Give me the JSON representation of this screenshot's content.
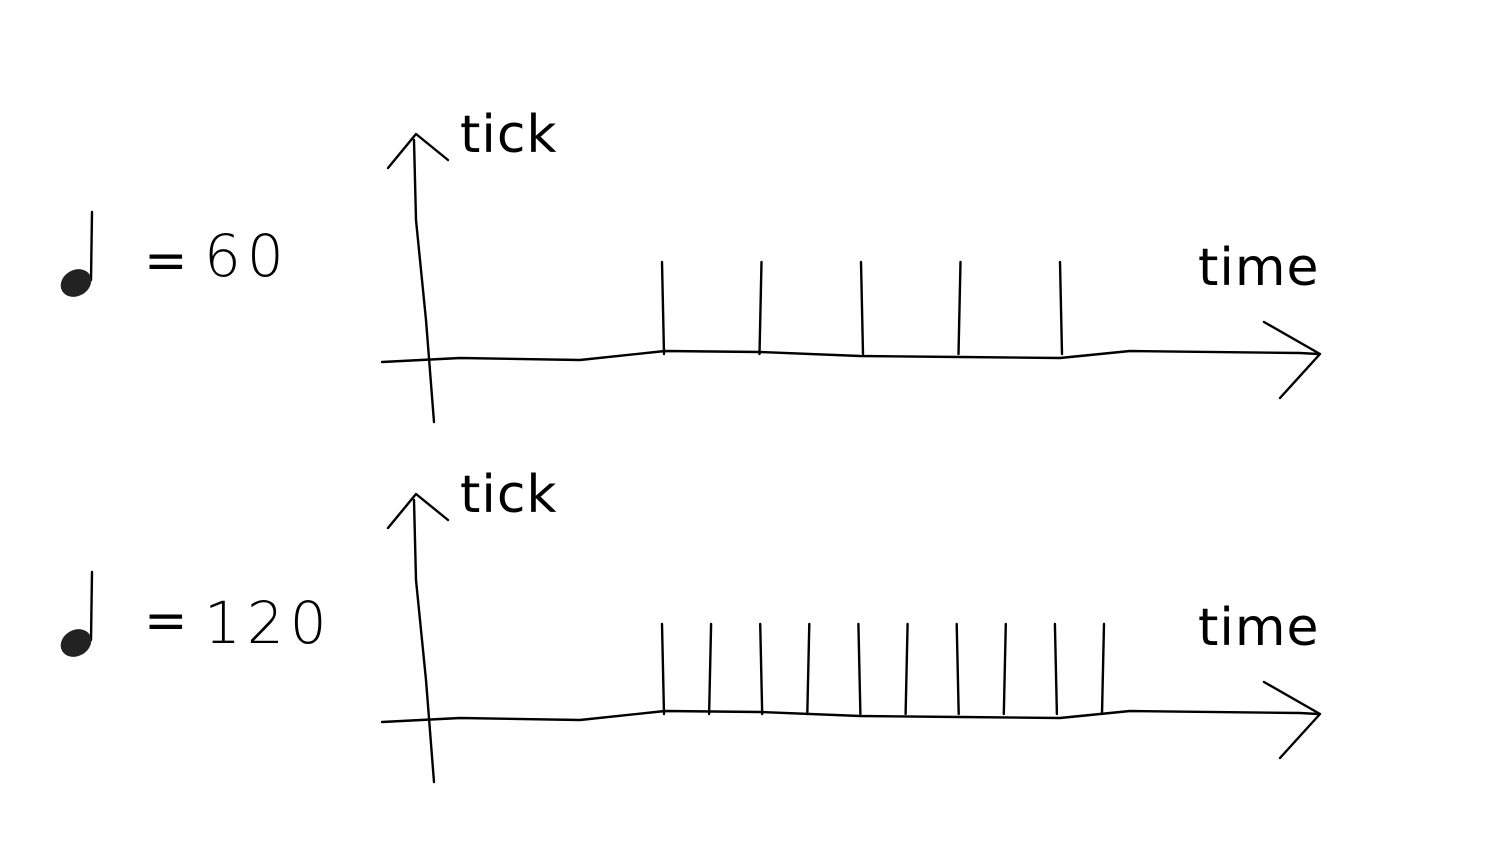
{
  "panels": [
    {
      "id": "tempo-60",
      "tempo_symbol": "quarter-note-icon",
      "equals": "=",
      "bpm": "60",
      "y_axis_label": "tick",
      "x_axis_label": "time",
      "tick_count": 5
    },
    {
      "id": "tempo-120",
      "tempo_symbol": "quarter-note-icon",
      "equals": "=",
      "bpm": "120",
      "y_axis_label": "tick",
      "x_axis_label": "time",
      "tick_count": 10
    }
  ],
  "colors": {
    "ink": "#000000",
    "background": "#ffffff"
  }
}
